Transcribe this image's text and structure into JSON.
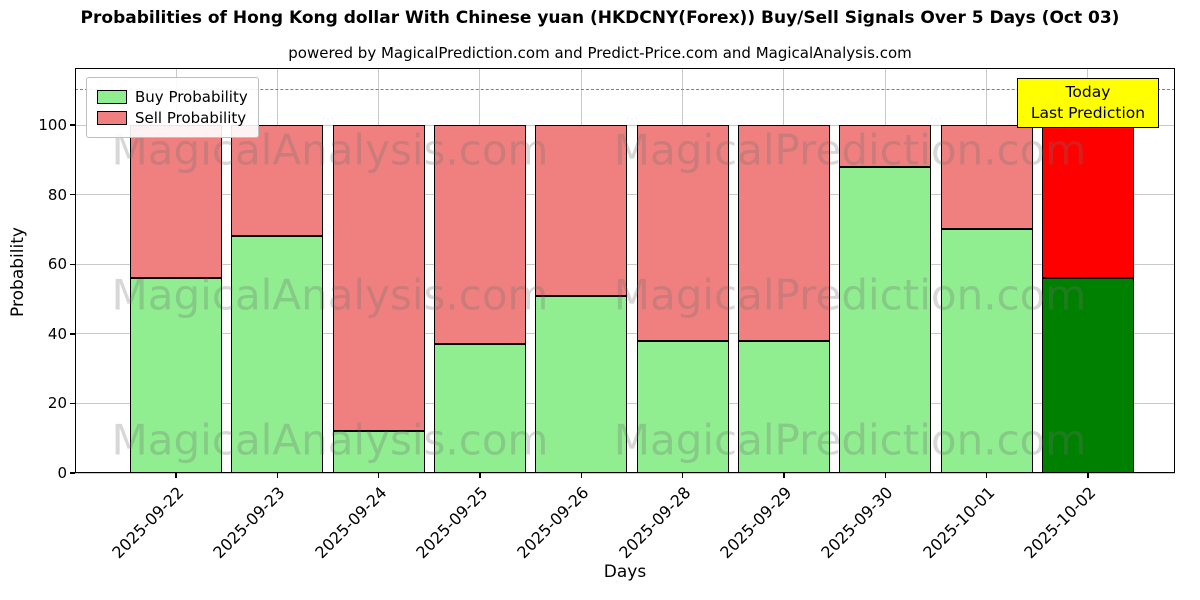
{
  "title": "Probabilities of Hong Kong dollar With Chinese yuan (HKDCNY(Forex)) Buy/Sell Signals Over 5 Days (Oct 03)",
  "subtitle": "powered by MagicalPrediction.com and Predict-Price.com and MagicalAnalysis.com",
  "chart_data": {
    "type": "bar",
    "stacked": true,
    "title": "Probabilities of Hong Kong dollar With Chinese yuan (HKDCNY(Forex)) Buy/Sell Signals Over 5 Days (Oct 03)",
    "xlabel": "Days",
    "ylabel": "Probability",
    "categories": [
      "2025-09-22",
      "2025-09-23",
      "2025-09-24",
      "2025-09-25",
      "2025-09-26",
      "2025-09-28",
      "2025-09-29",
      "2025-09-30",
      "2025-10-01",
      "2025-10-02"
    ],
    "series": [
      {
        "name": "Buy Probability",
        "color": "#90EE90",
        "values": [
          56,
          68,
          12,
          37,
          51,
          38,
          38,
          88,
          70,
          56
        ]
      },
      {
        "name": "Sell Probability",
        "color": "#F08080",
        "values": [
          44,
          32,
          88,
          63,
          49,
          62,
          62,
          12,
          30,
          44
        ]
      }
    ],
    "bar_total": 100,
    "yticks": [
      0,
      20,
      40,
      60,
      80,
      100
    ],
    "ylim": [
      0,
      116.4
    ],
    "grid": true,
    "dashed_reference_line_y": 110,
    "legend_position": "upper-left",
    "highlight_last_bar": {
      "buy_color": "#008000",
      "sell_color": "#FF0000",
      "label": "Today Last Prediction"
    }
  },
  "legend": {
    "items": [
      {
        "label": "Buy Probability",
        "color": "#90EE90"
      },
      {
        "label": "Sell Probability",
        "color": "#F08080"
      }
    ]
  },
  "annotation_box": {
    "line1": "Today",
    "line2": "Last Prediction",
    "bg_color": "#FFFF00"
  },
  "watermarks": {
    "left_text": "MagicalAnalysis.com",
    "right_text": "MagicalPrediction.com",
    "rows": 3
  }
}
